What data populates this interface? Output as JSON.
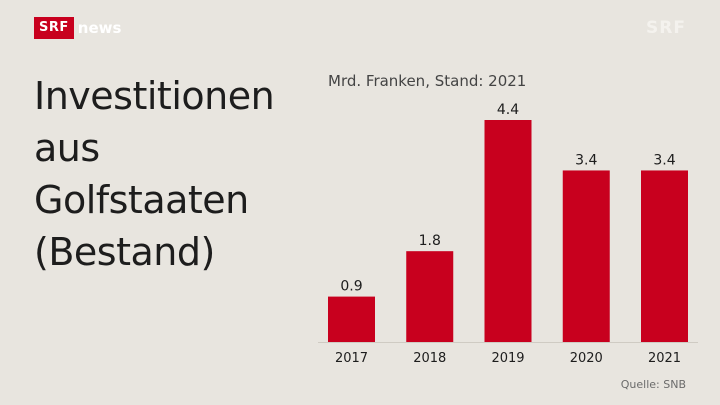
{
  "brand": {
    "logo_box": "SRF",
    "logo_news": "news",
    "watermark": "SRF"
  },
  "headline": [
    "Investitionen",
    "aus",
    "Golfstaaten",
    "(Bestand)"
  ],
  "source": "Quelle: SNB",
  "colors": {
    "bar": "#c8001e",
    "background": "#e8e5df",
    "text": "#1d1d1d"
  },
  "chart_data": {
    "type": "bar",
    "subtitle": "Mrd. Franken, Stand: 2021",
    "categories": [
      "2017",
      "2018",
      "2019",
      "2020",
      "2021"
    ],
    "values": [
      0.9,
      1.8,
      4.4,
      3.4,
      3.4
    ],
    "data_labels": [
      "0.9",
      "1.8",
      "4.4",
      "3.4",
      "3.4"
    ],
    "ylim": [
      0,
      4.4
    ],
    "grid": false,
    "xlabel": "",
    "ylabel": ""
  }
}
